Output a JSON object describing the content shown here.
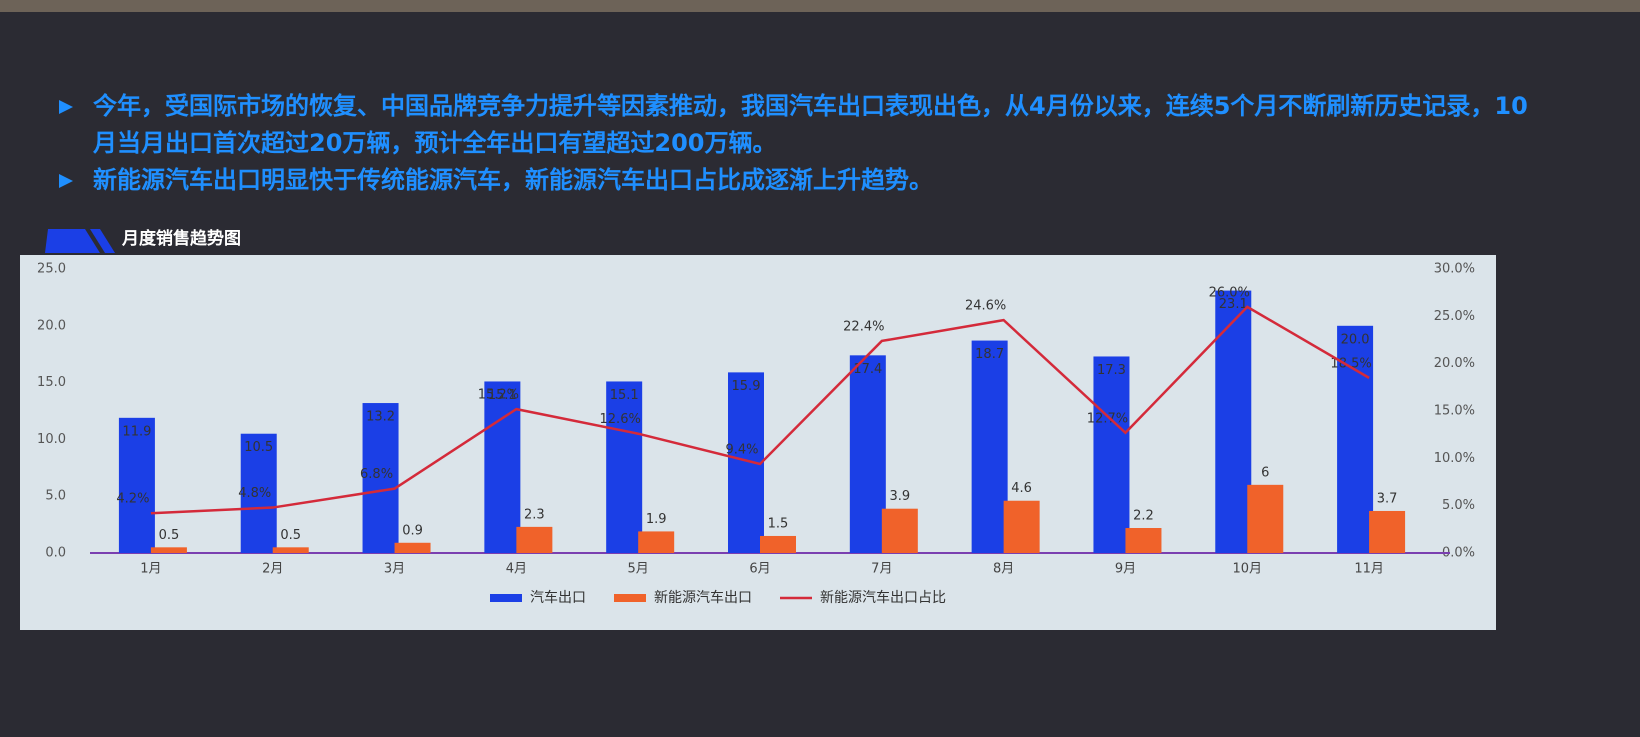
{
  "bullets": [
    "今年，受国际市场的恢复、中国品牌竞争力提升等因素推动，我国汽车出口表现出色，从4月份以来，连续5个月不断刷新历史记录，10月当月出口首次超过20万辆，预计全年出口有望超过200万辆。",
    "新能源汽车出口明显快于传统能源汽车，新能源汽车出口占比成逐渐上升趋势。"
  ],
  "chart_data": {
    "type": "bar",
    "title": "月度销售趋势图",
    "categories": [
      "1月",
      "2月",
      "3月",
      "4月",
      "5月",
      "6月",
      "7月",
      "8月",
      "9月",
      "10月",
      "11月"
    ],
    "series": [
      {
        "name": "汽车出口",
        "type": "bar",
        "color": "#1b3fe6",
        "values": [
          11.9,
          10.5,
          13.2,
          15.1,
          15.1,
          15.9,
          17.4,
          18.7,
          17.3,
          23.1,
          20.0
        ],
        "value_labels": [
          "11.9",
          "10.5",
          "13.2",
          "15.1",
          "15.1",
          "15.9",
          "17.4",
          "18.7",
          "17.3",
          "23.1",
          "20.0"
        ]
      },
      {
        "name": "新能源汽车出口",
        "type": "bar",
        "color": "#f0622a",
        "values": [
          0.5,
          0.5,
          0.9,
          2.3,
          1.9,
          1.5,
          3.9,
          4.6,
          2.2,
          6,
          3.7
        ]
      },
      {
        "name": "新能源汽车出口占比",
        "type": "line",
        "axis": "y2",
        "color": "#d42a3a",
        "values": [
          4.2,
          4.8,
          6.8,
          15.2,
          12.6,
          9.4,
          22.4,
          24.6,
          12.7,
          26.0,
          18.5
        ],
        "value_labels": [
          "4.2%",
          "4.8%",
          "6.8%",
          "15.2%",
          "12.6%",
          "9.4%",
          "22.4%",
          "24.6%",
          "12.7%",
          "26.0%",
          "18.5%"
        ]
      }
    ],
    "ylim": [
      0,
      25
    ],
    "yticks": [
      {
        "value": 0,
        "label": "0.0"
      },
      {
        "value": 5,
        "label": "5.0"
      },
      {
        "value": 10,
        "label": "10.0"
      },
      {
        "value": 15,
        "label": "15.0"
      },
      {
        "value": 20,
        "label": "20.0"
      },
      {
        "value": 25,
        "label": "25.0"
      }
    ],
    "y2lim": [
      0,
      30
    ],
    "y2ticks": [
      {
        "value": 0,
        "label": "0.0%"
      },
      {
        "value": 5,
        "label": "5.0%"
      },
      {
        "value": 10,
        "label": "10.0%"
      },
      {
        "value": 15,
        "label": "15.0%"
      },
      {
        "value": 20,
        "label": "20.0%"
      },
      {
        "value": 25,
        "label": "25.0%"
      },
      {
        "value": 30,
        "label": "30.0%"
      }
    ],
    "grid": false,
    "legend": "bottom"
  }
}
